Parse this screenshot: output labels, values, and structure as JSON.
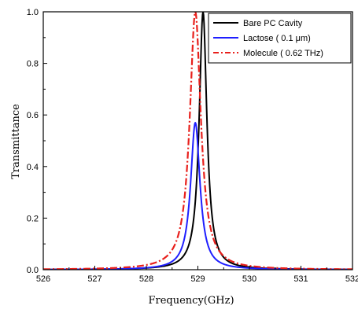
{
  "chart_data": {
    "type": "line",
    "xlabel": "Frequency(GHz)",
    "ylabel": "Transmittance",
    "xlim": [
      526,
      532
    ],
    "ylim": [
      0.0,
      1.0
    ],
    "xticks": [
      "526",
      "527",
      "528",
      "529",
      "530",
      "531",
      "532"
    ],
    "yticks": [
      "0.0",
      "0.2",
      "0.4",
      "0.6",
      "0.8",
      "1.0"
    ],
    "legend_position": "top-right",
    "grid": false,
    "series": [
      {
        "name": "Bare PC Cavity",
        "color": "#000000",
        "style": "solid",
        "peak_x": 529.1,
        "peak_y": 1.0,
        "fwhm": 0.18,
        "x": [
          526,
          527,
          528,
          528.5,
          528.8,
          529.0,
          529.1,
          529.2,
          529.4,
          529.7,
          530,
          531,
          532
        ],
        "y": [
          0.002,
          0.005,
          0.02,
          0.07,
          0.25,
          0.75,
          1.0,
          0.75,
          0.17,
          0.04,
          0.02,
          0.006,
          0.002
        ]
      },
      {
        "name": "Lactose ( 0.1 μm)",
        "color": "#1f1fff",
        "style": "solid",
        "peak_x": 528.95,
        "peak_y": 0.57,
        "fwhm": 0.22,
        "x": [
          526,
          527,
          528,
          528.5,
          528.8,
          528.95,
          529.1,
          529.3,
          529.6,
          530,
          531,
          532
        ],
        "y": [
          0.002,
          0.006,
          0.025,
          0.09,
          0.35,
          0.57,
          0.36,
          0.11,
          0.04,
          0.02,
          0.006,
          0.002
        ]
      },
      {
        "name": "Molecule ( 0.62 THz)",
        "color": "#e8201c",
        "style": "dash-dot",
        "peak_x": 528.95,
        "peak_y": 1.0,
        "fwhm": 0.26,
        "x": [
          526,
          527,
          528,
          528.5,
          528.8,
          528.95,
          529.1,
          529.3,
          529.6,
          530,
          531,
          532
        ],
        "y": [
          0.003,
          0.008,
          0.035,
          0.13,
          0.6,
          1.0,
          0.6,
          0.21,
          0.07,
          0.03,
          0.008,
          0.003
        ]
      }
    ]
  }
}
